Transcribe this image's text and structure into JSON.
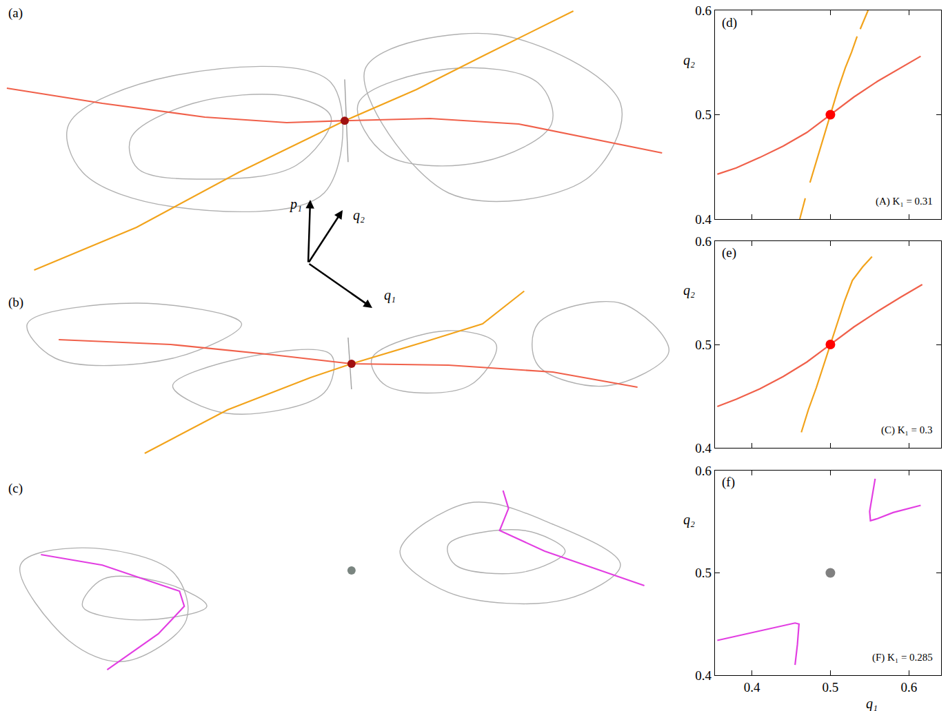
{
  "triad_labels": [
    "p₁",
    "q₂",
    "q₁"
  ],
  "chart_data": [
    {
      "panel": "(a)",
      "type": "line",
      "xlim": [
        0,
        1
      ],
      "ylim": [
        0,
        1
      ],
      "tick_labels": false,
      "grid": false,
      "series": [
        {
          "color": "#b0b0b0",
          "line_style": "solid",
          "x": [
            0.192,
            0.283,
            0.424,
            0.485,
            0.434,
            0.303,
            0.202,
            0.192
          ],
          "y": [
            0.5,
            0.625,
            0.65,
            0.575,
            0.4,
            0.35,
            0.388,
            0.5
          ]
        },
        {
          "color": "#b0b0b0",
          "line_style": "solid",
          "x": [
            0.525,
            0.657,
            0.788,
            0.808,
            0.707,
            0.566,
            0.525
          ],
          "y": [
            0.625,
            0.75,
            0.7,
            0.55,
            0.413,
            0.438,
            0.625
          ]
        },
        {
          "color": "#b0b0b0",
          "line_style": "solid",
          "x": [
            0.101,
            0.253,
            0.485,
            0.475,
            0.253,
            0.121,
            0.101
          ],
          "y": [
            0.55,
            0.725,
            0.7,
            0.3,
            0.25,
            0.375,
            0.55
          ]
        },
        {
          "color": "#b0b0b0",
          "line_style": "solid",
          "x": [
            0.535,
            0.727,
            0.909,
            0.859,
            0.657,
            0.535
          ],
          "y": [
            0.75,
            0.875,
            0.625,
            0.35,
            0.3,
            0.75
          ]
        },
        {
          "color": "#a0a0a0",
          "line_style": "solid",
          "x": [
            0.505,
            0.51
          ],
          "y": [
            0.712,
            0.412
          ]
        },
        {
          "color": "#f0604a",
          "line_style": "solid",
          "x": [
            0.01,
            0.15,
            0.3,
            0.42,
            0.505,
            0.63,
            0.76,
            0.88,
            0.97
          ],
          "y": [
            0.68,
            0.625,
            0.575,
            0.555,
            0.562,
            0.57,
            0.55,
            0.49,
            0.445
          ]
        },
        {
          "color": "#f2a31b",
          "line_style": "solid",
          "x": [
            0.05,
            0.2,
            0.35,
            0.505,
            0.61,
            0.71,
            0.84
          ],
          "y": [
            0.02,
            0.175,
            0.375,
            0.562,
            0.675,
            0.8,
            0.96
          ]
        },
        {
          "type": "scatter",
          "marker": "circle",
          "color": "#a01010",
          "x": [
            0.505
          ],
          "y": [
            0.562
          ]
        }
      ]
    },
    {
      "panel": "(b)",
      "type": "line",
      "xlim": [
        0,
        1
      ],
      "ylim": [
        0,
        1
      ],
      "tick_labels": false,
      "grid": false,
      "series": [
        {
          "color": "#b0b0b0",
          "line_style": "solid",
          "x": [
            0.253,
            0.354,
            0.485,
            0.475,
            0.333,
            0.253
          ],
          "y": [
            0.44,
            0.6,
            0.62,
            0.4,
            0.28,
            0.44
          ]
        },
        {
          "color": "#b0b0b0",
          "line_style": "solid",
          "x": [
            0.545,
            0.657,
            0.727,
            0.687,
            0.566,
            0.545
          ],
          "y": [
            0.6,
            0.76,
            0.68,
            0.44,
            0.44,
            0.6
          ]
        },
        {
          "color": "#b0b0b0",
          "line_style": "solid",
          "x": [
            0.04,
            0.202,
            0.354,
            0.253,
            0.081,
            0.04
          ],
          "y": [
            0.8,
            0.92,
            0.8,
            0.6,
            0.6,
            0.8
          ]
        },
        {
          "color": "#b0b0b0",
          "line_style": "solid",
          "x": [
            0.788,
            0.909,
            0.98,
            0.889,
            0.788,
            0.788
          ],
          "y": [
            0.8,
            0.92,
            0.64,
            0.44,
            0.56,
            0.8
          ]
        },
        {
          "color": "#a0a0a0",
          "line_style": "solid",
          "x": [
            0.51,
            0.515
          ],
          "y": [
            0.72,
            0.42
          ]
        },
        {
          "color": "#f0604a",
          "line_style": "solid",
          "x": [
            0.086,
            0.25,
            0.4,
            0.515,
            0.657,
            0.81,
            0.934
          ],
          "y": [
            0.708,
            0.68,
            0.62,
            0.568,
            0.56,
            0.52,
            0.432
          ]
        },
        {
          "color": "#f2a31b",
          "line_style": "solid",
          "x": [
            0.212,
            0.333,
            0.455,
            0.515,
            0.626,
            0.707,
            0.768
          ],
          "y": [
            0.048,
            0.3,
            0.488,
            0.568,
            0.7,
            0.8,
            0.99
          ]
        },
        {
          "type": "scatter",
          "marker": "circle",
          "color": "#a01010",
          "x": [
            0.515
          ],
          "y": [
            0.568
          ]
        }
      ]
    },
    {
      "panel": "(c)",
      "type": "line",
      "xlim": [
        0,
        1
      ],
      "ylim": [
        0,
        1
      ],
      "tick_labels": false,
      "grid": false,
      "series": [
        {
          "color": "#b0b0b0",
          "line_style": "solid",
          "x": [
            0.03,
            0.121,
            0.253,
            0.273,
            0.182,
            0.101,
            0.03
          ],
          "y": [
            0.581,
            0.661,
            0.548,
            0.323,
            0.129,
            0.226,
            0.581
          ]
        },
        {
          "color": "#b0b0b0",
          "line_style": "solid",
          "x": [
            0.586,
            0.687,
            0.808,
            0.909,
            0.828,
            0.657,
            0.586
          ],
          "y": [
            0.645,
            0.871,
            0.774,
            0.581,
            0.419,
            0.452,
            0.645
          ]
        },
        {
          "color": "#b0b0b0",
          "line_style": "solid",
          "x": [
            0.152,
            0.253,
            0.303,
            0.202,
            0.121,
            0.152
          ],
          "y": [
            0.516,
            0.484,
            0.387,
            0.323,
            0.387,
            0.516
          ]
        },
        {
          "color": "#b0b0b0",
          "line_style": "solid",
          "x": [
            0.657,
            0.768,
            0.828,
            0.768,
            0.667,
            0.657
          ],
          "y": [
            0.677,
            0.742,
            0.645,
            0.548,
            0.581,
            0.677
          ]
        },
        {
          "color": "#e23ee2",
          "line_style": "solid",
          "x": [
            0.06,
            0.15,
            0.263,
            0.27,
            0.232,
            0.157
          ],
          "y": [
            0.629,
            0.58,
            0.458,
            0.387,
            0.258,
            0.09
          ]
        },
        {
          "color": "#e23ee2",
          "line_style": "solid",
          "x": [
            0.737,
            0.745,
            0.732,
            0.798,
            0.944
          ],
          "y": [
            0.929,
            0.845,
            0.742,
            0.645,
            0.484
          ]
        },
        {
          "type": "scatter",
          "marker": "circle",
          "color": "#7a8580",
          "x": [
            0.515
          ],
          "y": [
            0.555
          ]
        }
      ]
    },
    {
      "panel": "(d)",
      "type": "line",
      "annotation": "(A) K₁ = 0.31",
      "y_label": "q₂",
      "xlim": [
        0.353,
        0.641
      ],
      "ylim": [
        0.4,
        0.6
      ],
      "xticks": [
        0.4,
        0.5,
        0.6
      ],
      "yticks": [
        0.4,
        0.5,
        0.6
      ],
      "tick_labels": "y",
      "grid": false,
      "series": [
        {
          "color": "#f0604a",
          "line_style": "solid",
          "x": [
            0.356,
            0.38,
            0.41,
            0.44,
            0.47,
            0.5,
            0.53,
            0.56,
            0.59,
            0.615
          ],
          "y": [
            0.443,
            0.449,
            0.459,
            0.47,
            0.483,
            0.5,
            0.517,
            0.532,
            0.545,
            0.556
          ]
        },
        {
          "color": "#f2a31b",
          "line_style": "solid",
          "x": [
            0.461,
            0.468,
            null,
            0.474,
            0.482,
            0.49,
            0.5,
            0.51,
            0.519,
            0.527,
            0.534,
            null,
            0.538,
            0.548
          ],
          "y": [
            0.4,
            0.42,
            null,
            0.435,
            0.455,
            0.475,
            0.5,
            0.525,
            0.545,
            0.56,
            0.575,
            null,
            0.582,
            0.6
          ]
        },
        {
          "type": "scatter",
          "marker": "circle",
          "color": "#ff0000",
          "x": [
            0.5
          ],
          "y": [
            0.5
          ]
        }
      ]
    },
    {
      "panel": "(e)",
      "type": "line",
      "annotation": "(C) K₁ = 0.3",
      "y_label": "q₂",
      "xlim": [
        0.353,
        0.641
      ],
      "ylim": [
        0.4,
        0.6
      ],
      "xticks": [
        0.4,
        0.5,
        0.6
      ],
      "yticks": [
        0.4,
        0.5,
        0.6
      ],
      "tick_labels": "y",
      "grid": false,
      "series": [
        {
          "color": "#f0604a",
          "line_style": "solid",
          "x": [
            0.356,
            0.38,
            0.41,
            0.44,
            0.47,
            0.5,
            0.53,
            0.56,
            0.59,
            0.617
          ],
          "y": [
            0.44,
            0.447,
            0.457,
            0.469,
            0.483,
            0.5,
            0.517,
            0.532,
            0.546,
            0.558
          ]
        },
        {
          "color": "#f2a31b",
          "line_style": "solid",
          "x": [
            0.463,
            0.472,
            0.482,
            0.491,
            0.5,
            0.509,
            0.518,
            0.528,
            0.541,
            0.553
          ],
          "y": [
            0.415,
            0.437,
            0.458,
            0.479,
            0.5,
            0.521,
            0.542,
            0.562,
            0.575,
            0.585
          ]
        },
        {
          "type": "scatter",
          "marker": "circle",
          "color": "#ff0000",
          "x": [
            0.5
          ],
          "y": [
            0.5
          ]
        }
      ]
    },
    {
      "panel": "(f)",
      "type": "line",
      "annotation": "(F) K₁ = 0.285",
      "y_label": "q₂",
      "x_label": "q₁",
      "xlim": [
        0.353,
        0.641
      ],
      "ylim": [
        0.4,
        0.6
      ],
      "xticks": [
        0.4,
        0.5,
        0.6
      ],
      "yticks": [
        0.4,
        0.5,
        0.6
      ],
      "grid": false,
      "series": [
        {
          "color": "#e23ee2",
          "line_style": "solid",
          "x": [
            0.557,
            0.553,
            0.55,
            0.551,
            0.56,
            0.58,
            0.6,
            0.615
          ],
          "y": [
            0.592,
            0.575,
            0.56,
            0.551,
            0.553,
            0.559,
            0.563,
            0.566
          ]
        },
        {
          "color": "#e23ee2",
          "line_style": "solid",
          "x": [
            0.356,
            0.38,
            0.41,
            0.44,
            0.455,
            0.46,
            0.458,
            0.455
          ],
          "y": [
            0.434,
            0.438,
            0.443,
            0.448,
            0.451,
            0.45,
            0.43,
            0.41
          ]
        },
        {
          "type": "scatter",
          "marker": "circle",
          "color": "#808080",
          "x": [
            0.5
          ],
          "y": [
            0.5
          ]
        }
      ]
    }
  ]
}
